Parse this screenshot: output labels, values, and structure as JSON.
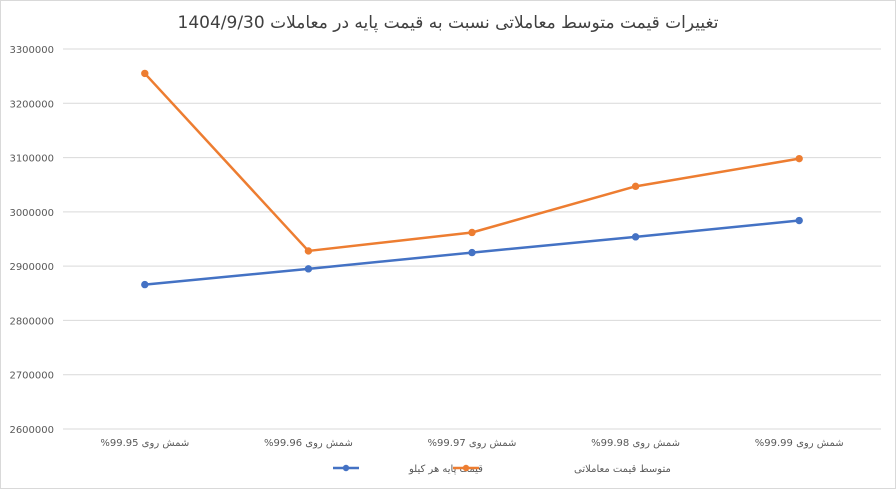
{
  "chart_data": {
    "type": "line",
    "title": "تغییرات قیمت متوسط معاملاتی نسبت به قیمت پایه در  معاملات 1404/9/30",
    "categories": [
      "شمش روی 99.95%",
      "شمش روی 99.96%",
      "شمش روی 99.97%",
      "شمش روی 99.98%",
      "شمش روی 99.99%"
    ],
    "ylim": [
      2600000,
      3300000
    ],
    "yticks": [
      "3300000",
      "3200000",
      "3100000",
      "3000000",
      "2900000",
      "2800000",
      "2700000",
      "2600000"
    ],
    "grid": true,
    "legend_position": "bottom",
    "series": [
      {
        "name": "قیمت پایه هر کیلو",
        "color": "#4472c4",
        "values": [
          2866000,
          2895000,
          2925000,
          2954000,
          2984000
        ]
      },
      {
        "name": "متوسط قیمت معاملاتی",
        "color": "#ed7d31",
        "values": [
          3255000,
          2928000,
          2962000,
          3047000,
          3098000
        ]
      }
    ]
  }
}
